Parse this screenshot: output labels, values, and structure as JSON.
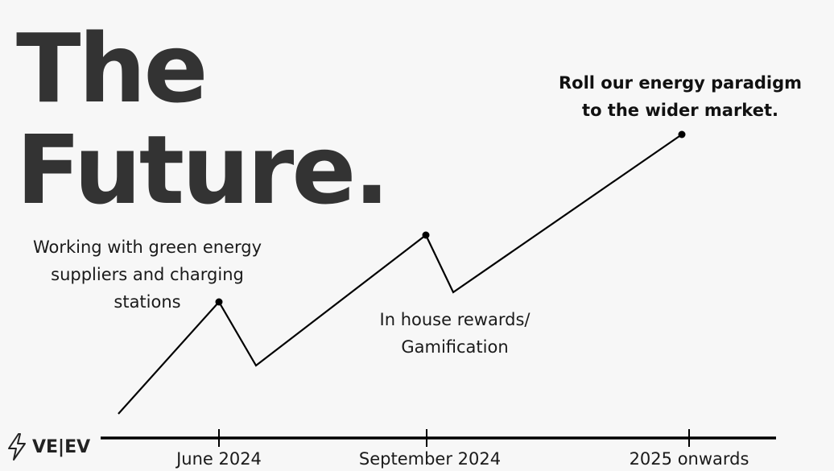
{
  "title": {
    "line1": "The",
    "line2": "Future."
  },
  "milestones": [
    {
      "lines": [
        "Working with green energy",
        "suppliers and charging",
        "stations"
      ]
    },
    {
      "lines": [
        "In house rewards/",
        "Gamification"
      ]
    },
    {
      "lines": [
        "Roll our energy paradigm",
        "to the wider market."
      ]
    }
  ],
  "timeline": {
    "dates": [
      "June 2024",
      "September 2024",
      "2025 onwards"
    ]
  },
  "logo": {
    "icon": "lightning-bolt-icon",
    "text": "VE|EV"
  },
  "colors": {
    "title": "#333333",
    "line": "#000000",
    "background": "#f7f7f7"
  }
}
